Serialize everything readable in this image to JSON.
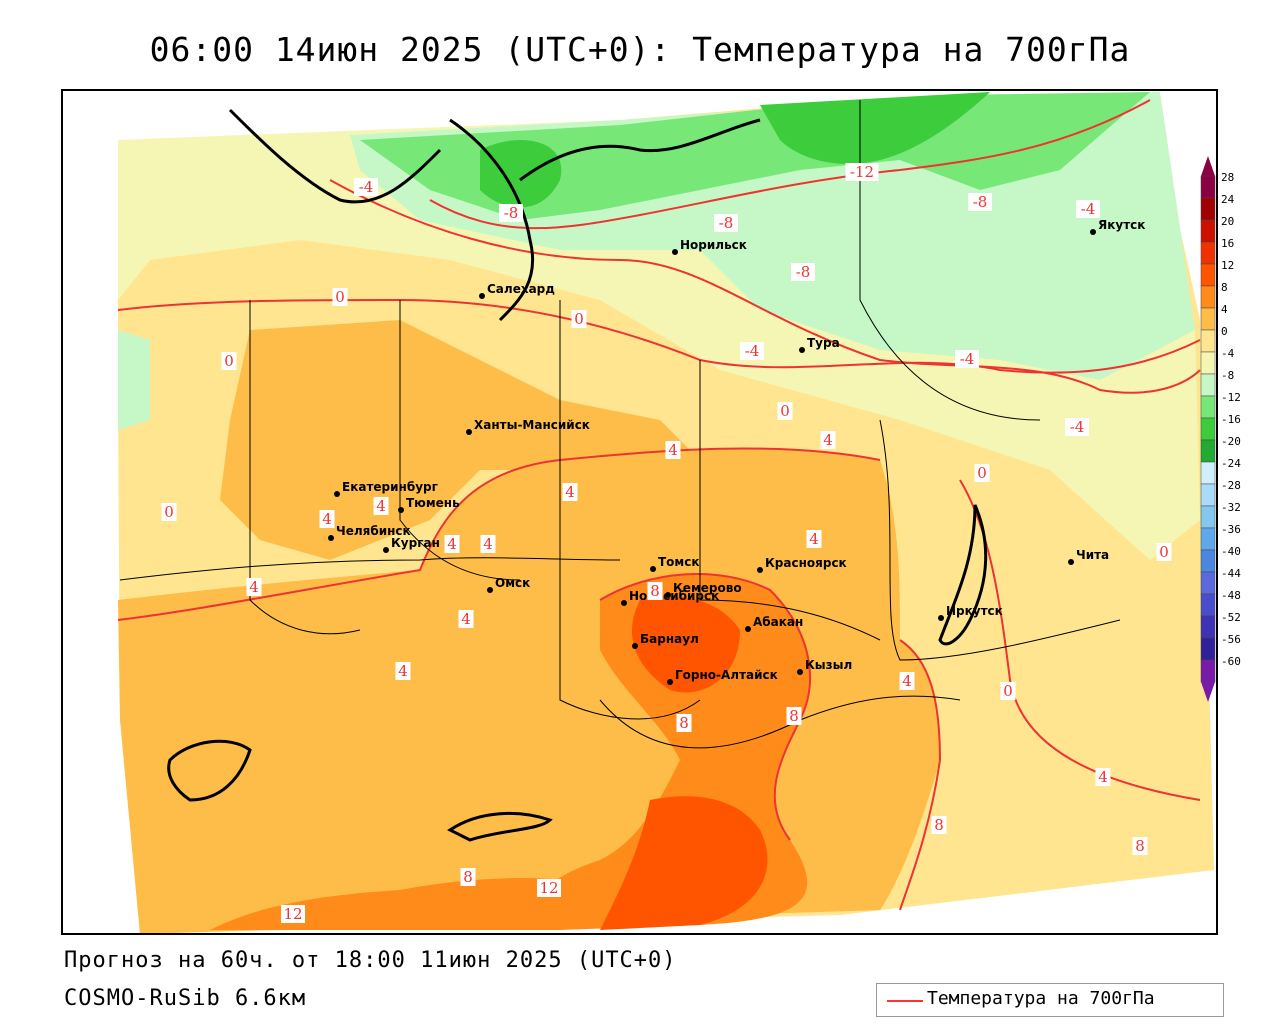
{
  "title": "06:00 14июн 2025 (UTC+0): Температура на 700гПа",
  "footer": {
    "forecast": "Прогноз на 60ч. от 18:00 11июн 2025 (UTC+0)",
    "model": "COSMO-RuSib 6.6км"
  },
  "legend": {
    "line_label": "Температура на 700гПа",
    "line_color": "#ee3333"
  },
  "colorbar": [
    {
      "label": "28",
      "color": "#8b0044"
    },
    {
      "label": "24",
      "color": "#a00000"
    },
    {
      "label": "20",
      "color": "#cc1100"
    },
    {
      "label": "16",
      "color": "#ee3300"
    },
    {
      "label": "12",
      "color": "#ff5500"
    },
    {
      "label": "8",
      "color": "#ff8c1a"
    },
    {
      "label": "4",
      "color": "#fdbd48"
    },
    {
      "label": "0",
      "color": "#ffe590"
    },
    {
      "label": "-4",
      "color": "#f6f6b4"
    },
    {
      "label": "-8",
      "color": "#c6f7c6"
    },
    {
      "label": "-12",
      "color": "#77e877"
    },
    {
      "label": "-16",
      "color": "#3ccc3c"
    },
    {
      "label": "-20",
      "color": "#22aa33"
    },
    {
      "label": "-24",
      "color": "#cfeffd"
    },
    {
      "label": "-28",
      "color": "#a8dcf8"
    },
    {
      "label": "-32",
      "color": "#84c8f0"
    },
    {
      "label": "-36",
      "color": "#5fa8ec"
    },
    {
      "label": "-40",
      "color": "#4a88e0"
    },
    {
      "label": "-44",
      "color": "#5a6ade"
    },
    {
      "label": "-48",
      "color": "#4a4cce"
    },
    {
      "label": "-52",
      "color": "#3e32b6"
    },
    {
      "label": "-56",
      "color": "#30209c"
    },
    {
      "label": "-60",
      "color": "#7a1aa8"
    }
  ],
  "cities": [
    {
      "name": "Норильск"
    },
    {
      "name": "Салехард"
    },
    {
      "name": "Тура"
    },
    {
      "name": "Якутск"
    },
    {
      "name": "Ханты-Мансийск"
    },
    {
      "name": "Екатеринбург"
    },
    {
      "name": "Тюмень"
    },
    {
      "name": "Челябинск"
    },
    {
      "name": "Курган"
    },
    {
      "name": "Омск"
    },
    {
      "name": "Новосибирск"
    },
    {
      "name": "Томск"
    },
    {
      "name": "Кемерово"
    },
    {
      "name": "Красноярск"
    },
    {
      "name": "Барнаул"
    },
    {
      "name": "Абакан"
    },
    {
      "name": "Горно-Алтайск"
    },
    {
      "name": "Кызыл"
    },
    {
      "name": "Иркутск"
    },
    {
      "name": "Чита"
    }
  ],
  "contour_labels": [
    "-4",
    "-8",
    "-8",
    "-12",
    "-8",
    "-4",
    "-8",
    "-4",
    "-4",
    "-4",
    "0",
    "0",
    "0",
    "0",
    "0",
    "0",
    "0",
    "0",
    "4",
    "4",
    "4",
    "4",
    "4",
    "4",
    "4",
    "4",
    "4",
    "4",
    "4",
    "4",
    "4",
    "8",
    "8",
    "8",
    "8",
    "8",
    "8",
    "12",
    "12"
  ]
}
